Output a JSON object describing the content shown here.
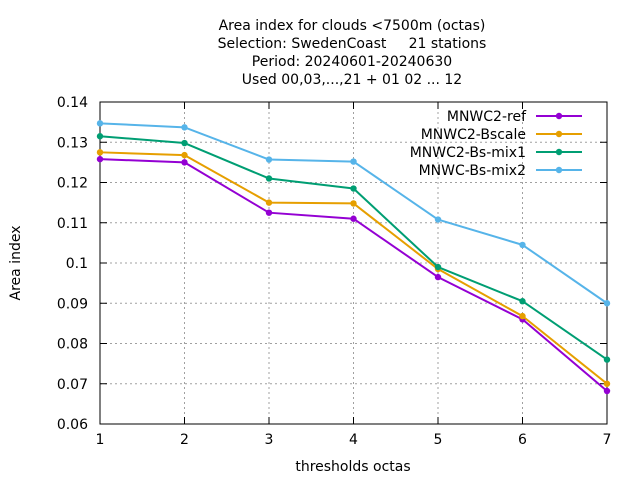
{
  "chart_data": {
    "type": "line",
    "title_lines": [
      "Area index  for clouds <7500m (octas)",
      "Selection: SwedenCoast     21 stations",
      "Period: 20240601-20240630",
      "Used 00,03,...,21 + 01 02 ... 12"
    ],
    "xlabel": "thresholds octas",
    "ylabel": "Area index",
    "x": [
      1,
      2,
      3,
      4,
      5,
      6,
      7
    ],
    "xlim": [
      1,
      7
    ],
    "ylim": [
      0.06,
      0.14
    ],
    "xticks": [
      1,
      2,
      3,
      4,
      5,
      6,
      7
    ],
    "yticks": [
      0.06,
      0.07,
      0.08,
      0.09,
      0.1,
      0.11,
      0.12,
      0.13,
      0.14
    ],
    "ytick_labels": [
      "0.06",
      "0.07",
      "0.08",
      "0.09",
      "0.1",
      "0.11",
      "0.12",
      "0.13",
      "0.14"
    ],
    "grid": true,
    "legend_position": "top-right",
    "series": [
      {
        "name": "MNWC2-ref",
        "color": "#9400d3",
        "values": [
          0.1258,
          0.125,
          0.1125,
          0.111,
          0.0965,
          0.086,
          0.0682
        ]
      },
      {
        "name": "MNWC2-Bscale",
        "color": "#e69f00",
        "values": [
          0.1275,
          0.1268,
          0.115,
          0.1148,
          0.0985,
          0.0868,
          0.07
        ]
      },
      {
        "name": "MNWC2-Bs-mix1",
        "color": "#009e73",
        "values": [
          0.1315,
          0.1298,
          0.121,
          0.1185,
          0.099,
          0.0905,
          0.076
        ]
      },
      {
        "name": "MNWC-Bs-mix2",
        "color": "#56b4e9",
        "values": [
          0.1347,
          0.1337,
          0.1257,
          0.1252,
          0.1108,
          0.1045,
          0.09
        ]
      }
    ]
  }
}
